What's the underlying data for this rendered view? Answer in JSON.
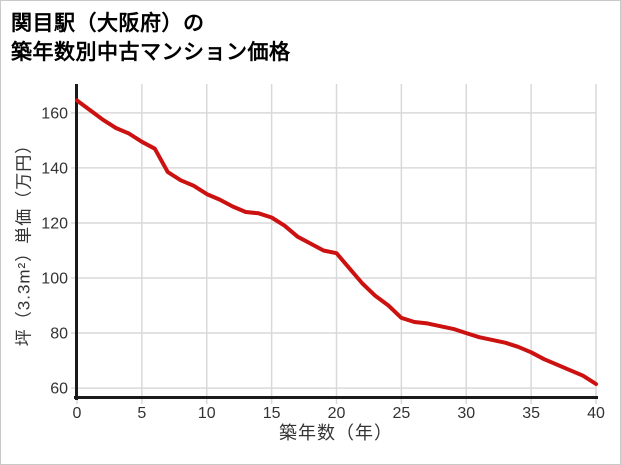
{
  "title": {
    "line1": "関目駅（大阪府）の",
    "line2": "築年数別中古マンション価格"
  },
  "chart_data": {
    "type": "line",
    "title": "関目駅（大阪府）の築年数別中古マンション価格",
    "xlabel": "築年数（年）",
    "ylabel": "坪（3.3m²）単価（万円）",
    "x": [
      0,
      1,
      2,
      3,
      4,
      5,
      6,
      7,
      8,
      9,
      10,
      11,
      12,
      13,
      14,
      15,
      16,
      17,
      18,
      19,
      20,
      21,
      22,
      23,
      24,
      25,
      26,
      27,
      28,
      29,
      30,
      31,
      32,
      33,
      34,
      35,
      36,
      37,
      38,
      39,
      40
    ],
    "y": [
      164.5,
      161,
      157.5,
      154.5,
      152.5,
      149.5,
      147,
      138.5,
      135.5,
      133.5,
      130.5,
      128.5,
      126,
      124,
      123.5,
      122,
      119,
      115,
      112.5,
      110,
      109,
      103.5,
      98,
      93.5,
      90,
      85.5,
      84,
      83.5,
      82.5,
      81.5,
      80,
      78.5,
      77.5,
      76.5,
      75,
      73,
      70.5,
      68.5,
      66.5,
      64.5,
      61.5
    ],
    "x_ticks": [
      0,
      5,
      10,
      15,
      20,
      25,
      30,
      35,
      40
    ],
    "y_ticks": [
      60,
      80,
      100,
      120,
      140,
      160
    ],
    "xlim": [
      0,
      40
    ],
    "ylim": [
      56.4,
      170.5
    ],
    "grid": true,
    "legend": "none",
    "line_color": "#cc1111",
    "grid_color": "#d9d9d9",
    "axis_color": "#1a1a1a",
    "tick_label_color": "#333333"
  }
}
